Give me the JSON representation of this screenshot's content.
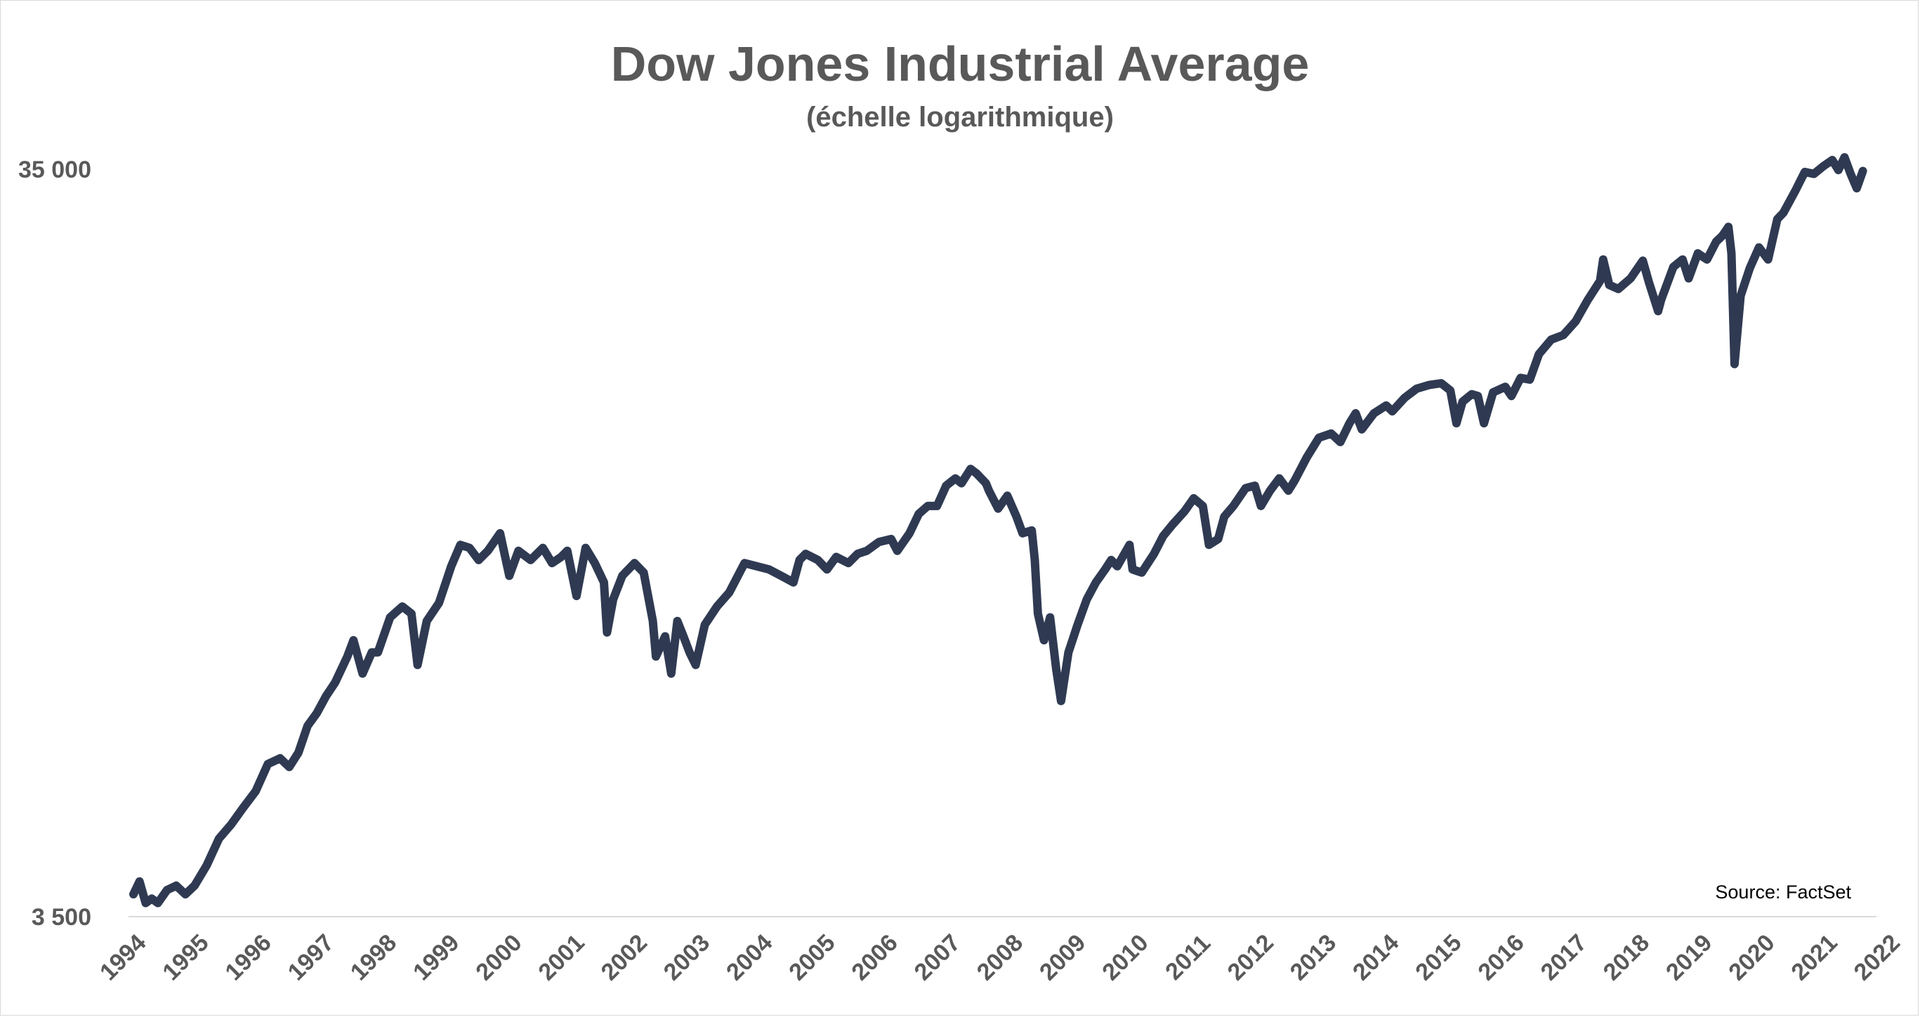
{
  "chart_data": {
    "type": "line",
    "title": "Dow Jones Industrial Average",
    "subtitle": "(échelle logarithmique)",
    "source": "Source: FactSet",
    "y_scale": "log",
    "ylim": [
      3500,
      35000
    ],
    "y_ticks": [
      {
        "value": 3500,
        "label": "3 500"
      },
      {
        "value": 35000,
        "label": "35 000"
      }
    ],
    "x_ticks": [
      "1994",
      "1995",
      "1996",
      "1997",
      "1998",
      "1999",
      "2000",
      "2001",
      "2002",
      "2003",
      "2004",
      "2005",
      "2006",
      "2007",
      "2008",
      "2009",
      "2010",
      "2011",
      "2012",
      "2013",
      "2014",
      "2015",
      "2016",
      "2017",
      "2018",
      "2019",
      "2020",
      "2021",
      "2022"
    ],
    "grid": false,
    "line_color": "#2f3a52",
    "series": [
      {
        "points": [
          [
            1994.0,
            3750
          ],
          [
            1994.1,
            3900
          ],
          [
            1994.2,
            3650
          ],
          [
            1994.3,
            3700
          ],
          [
            1994.4,
            3650
          ],
          [
            1994.55,
            3800
          ],
          [
            1994.7,
            3850
          ],
          [
            1994.85,
            3750
          ],
          [
            1995.0,
            3850
          ],
          [
            1995.2,
            4100
          ],
          [
            1995.4,
            4450
          ],
          [
            1995.6,
            4650
          ],
          [
            1995.8,
            4900
          ],
          [
            1996.0,
            5150
          ],
          [
            1996.2,
            5600
          ],
          [
            1996.4,
            5700
          ],
          [
            1996.55,
            5550
          ],
          [
            1996.7,
            5800
          ],
          [
            1996.85,
            6300
          ],
          [
            1997.0,
            6550
          ],
          [
            1997.15,
            6900
          ],
          [
            1997.3,
            7200
          ],
          [
            1997.5,
            7800
          ],
          [
            1997.6,
            8200
          ],
          [
            1997.75,
            7400
          ],
          [
            1997.9,
            7900
          ],
          [
            1998.0,
            7900
          ],
          [
            1998.2,
            8800
          ],
          [
            1998.4,
            9100
          ],
          [
            1998.55,
            8900
          ],
          [
            1998.65,
            7600
          ],
          [
            1998.8,
            8700
          ],
          [
            1999.0,
            9200
          ],
          [
            1999.2,
            10300
          ],
          [
            1999.35,
            11000
          ],
          [
            1999.5,
            10900
          ],
          [
            1999.65,
            10500
          ],
          [
            1999.8,
            10800
          ],
          [
            2000.0,
            11400
          ],
          [
            2000.15,
            10000
          ],
          [
            2000.3,
            10800
          ],
          [
            2000.5,
            10500
          ],
          [
            2000.7,
            10900
          ],
          [
            2000.85,
            10400
          ],
          [
            2001.0,
            10600
          ],
          [
            2001.1,
            10800
          ],
          [
            2001.25,
            9400
          ],
          [
            2001.4,
            10900
          ],
          [
            2001.55,
            10400
          ],
          [
            2001.7,
            9800
          ],
          [
            2001.75,
            8400
          ],
          [
            2001.85,
            9300
          ],
          [
            2002.0,
            10000
          ],
          [
            2002.2,
            10400
          ],
          [
            2002.35,
            10100
          ],
          [
            2002.5,
            8700
          ],
          [
            2002.55,
            7800
          ],
          [
            2002.7,
            8300
          ],
          [
            2002.8,
            7400
          ],
          [
            2002.9,
            8700
          ],
          [
            2003.0,
            8300
          ],
          [
            2003.1,
            7900
          ],
          [
            2003.2,
            7600
          ],
          [
            2003.35,
            8600
          ],
          [
            2003.55,
            9100
          ],
          [
            2003.75,
            9500
          ],
          [
            2004.0,
            10400
          ],
          [
            2004.2,
            10300
          ],
          [
            2004.4,
            10200
          ],
          [
            2004.6,
            10000
          ],
          [
            2004.8,
            9800
          ],
          [
            2004.9,
            10500
          ],
          [
            2005.0,
            10700
          ],
          [
            2005.2,
            10500
          ],
          [
            2005.35,
            10200
          ],
          [
            2005.5,
            10600
          ],
          [
            2005.7,
            10400
          ],
          [
            2005.85,
            10700
          ],
          [
            2006.0,
            10800
          ],
          [
            2006.2,
            11100
          ],
          [
            2006.4,
            11200
          ],
          [
            2006.5,
            10800
          ],
          [
            2006.7,
            11400
          ],
          [
            2006.85,
            12100
          ],
          [
            2007.0,
            12400
          ],
          [
            2007.15,
            12400
          ],
          [
            2007.3,
            13200
          ],
          [
            2007.45,
            13500
          ],
          [
            2007.55,
            13300
          ],
          [
            2007.7,
            13900
          ],
          [
            2007.8,
            13700
          ],
          [
            2007.95,
            13300
          ],
          [
            2008.0,
            13000
          ],
          [
            2008.15,
            12300
          ],
          [
            2008.3,
            12800
          ],
          [
            2008.45,
            12000
          ],
          [
            2008.55,
            11400
          ],
          [
            2008.7,
            11500
          ],
          [
            2008.75,
            10500
          ],
          [
            2008.8,
            8900
          ],
          [
            2008.9,
            8200
          ],
          [
            2009.0,
            8800
          ],
          [
            2009.1,
            7500
          ],
          [
            2009.18,
            6800
          ],
          [
            2009.3,
            7900
          ],
          [
            2009.45,
            8600
          ],
          [
            2009.6,
            9300
          ],
          [
            2009.75,
            9800
          ],
          [
            2009.9,
            10200
          ],
          [
            2010.0,
            10500
          ],
          [
            2010.1,
            10300
          ],
          [
            2010.3,
            11000
          ],
          [
            2010.35,
            10200
          ],
          [
            2010.5,
            10100
          ],
          [
            2010.7,
            10700
          ],
          [
            2010.85,
            11300
          ],
          [
            2011.0,
            11700
          ],
          [
            2011.2,
            12200
          ],
          [
            2011.35,
            12700
          ],
          [
            2011.5,
            12400
          ],
          [
            2011.6,
            11000
          ],
          [
            2011.75,
            11200
          ],
          [
            2011.85,
            12000
          ],
          [
            2012.0,
            12400
          ],
          [
            2012.2,
            13100
          ],
          [
            2012.35,
            13200
          ],
          [
            2012.45,
            12400
          ],
          [
            2012.6,
            13000
          ],
          [
            2012.75,
            13500
          ],
          [
            2012.9,
            13000
          ],
          [
            2013.0,
            13400
          ],
          [
            2013.2,
            14400
          ],
          [
            2013.4,
            15300
          ],
          [
            2013.6,
            15500
          ],
          [
            2013.75,
            15100
          ],
          [
            2013.9,
            16000
          ],
          [
            2014.0,
            16500
          ],
          [
            2014.1,
            15700
          ],
          [
            2014.3,
            16500
          ],
          [
            2014.5,
            16900
          ],
          [
            2014.6,
            16600
          ],
          [
            2014.8,
            17300
          ],
          [
            2015.0,
            17800
          ],
          [
            2015.2,
            18000
          ],
          [
            2015.4,
            18100
          ],
          [
            2015.55,
            17700
          ],
          [
            2015.65,
            16000
          ],
          [
            2015.75,
            17100
          ],
          [
            2015.9,
            17500
          ],
          [
            2016.0,
            17400
          ],
          [
            2016.1,
            16000
          ],
          [
            2016.25,
            17600
          ],
          [
            2016.45,
            17900
          ],
          [
            2016.55,
            17400
          ],
          [
            2016.7,
            18400
          ],
          [
            2016.85,
            18300
          ],
          [
            2017.0,
            19800
          ],
          [
            2017.2,
            20700
          ],
          [
            2017.4,
            21000
          ],
          [
            2017.6,
            21900
          ],
          [
            2017.8,
            23400
          ],
          [
            2018.0,
            24800
          ],
          [
            2018.05,
            26500
          ],
          [
            2018.15,
            24500
          ],
          [
            2018.3,
            24200
          ],
          [
            2018.5,
            25000
          ],
          [
            2018.7,
            26400
          ],
          [
            2018.8,
            24700
          ],
          [
            2018.95,
            22600
          ],
          [
            2019.0,
            23400
          ],
          [
            2019.2,
            25900
          ],
          [
            2019.35,
            26500
          ],
          [
            2019.45,
            25000
          ],
          [
            2019.6,
            27000
          ],
          [
            2019.75,
            26500
          ],
          [
            2019.9,
            28000
          ],
          [
            2020.0,
            28500
          ],
          [
            2020.1,
            29300
          ],
          [
            2020.15,
            27000
          ],
          [
            2020.2,
            19200
          ],
          [
            2020.3,
            23700
          ],
          [
            2020.45,
            25800
          ],
          [
            2020.6,
            27500
          ],
          [
            2020.75,
            26500
          ],
          [
            2020.9,
            30000
          ],
          [
            2021.0,
            30600
          ],
          [
            2021.2,
            32800
          ],
          [
            2021.35,
            34700
          ],
          [
            2021.5,
            34500
          ],
          [
            2021.65,
            35300
          ],
          [
            2021.8,
            36000
          ],
          [
            2021.9,
            34900
          ],
          [
            2022.0,
            36300
          ],
          [
            2022.1,
            34500
          ],
          [
            2022.2,
            33000
          ],
          [
            2022.3,
            34800
          ]
        ]
      }
    ]
  }
}
